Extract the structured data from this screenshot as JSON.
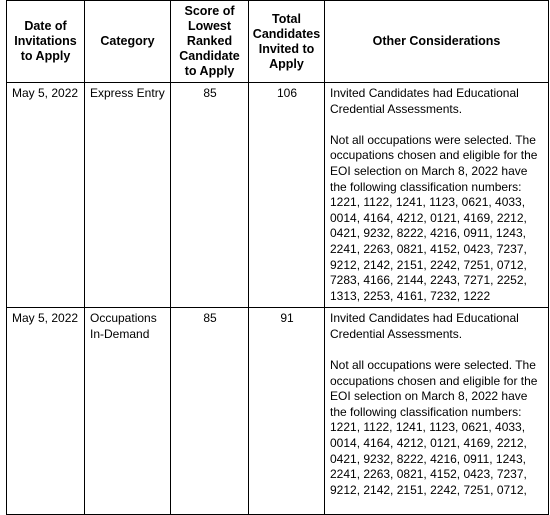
{
  "table": {
    "headers": [
      "Date of Invitations to Apply",
      "Category",
      "Score of Lowest Ranked Candidate to Apply",
      "Total Candidates Invited to Apply",
      "Other Considerations"
    ],
    "rows": [
      {
        "date": "May 5, 2022",
        "category": "Express Entry",
        "score": "85",
        "total": "106",
        "considerations": [
          "Invited Candidates had Educational Credential Assessments.",
          "Not all occupations were selected. The occupations chosen and eligible for the EOI selection on March 8, 2022 have the following classification numbers: 1221, 1122, 1241, 1123, 0621, 4033, 0014, 4164, 4212, 0121, 4169, 2212, 0421, 9232, 8222, 4216, 0911, 1243, 2241, 2263, 0821, 4152, 0423, 7237, 9212, 2142, 2151, 2242, 7251, 0712, 7283, 4166, 2144, 2243, 7271, 2252, 1313, 2253, 4161, 7232, 1222"
        ]
      },
      {
        "date": "May 5, 2022",
        "category": "Occupations In-Demand",
        "score": "85",
        "total": "91",
        "considerations": [
          "Invited Candidates had Educational Credential Assessments.",
          "Not all occupations were selected. The occupations chosen and eligible for the EOI selection on March 8, 2022 have the following classification numbers: 1221, 1122, 1241, 1123, 0621, 4033, 0014, 4164, 4212, 0121, 4169, 2212, 0421, 9232, 8222, 4216, 0911, 1243, 2241, 2263, 0821, 4152, 0423, 7237, 9212, 2142, 2151, 2242, 7251, 0712,"
        ]
      }
    ]
  }
}
